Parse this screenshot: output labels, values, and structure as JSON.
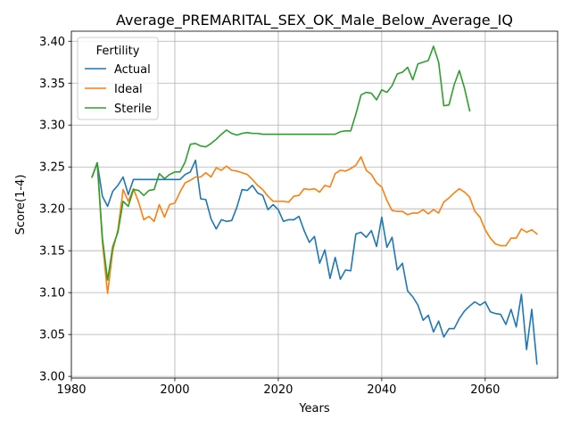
{
  "chart_data": {
    "type": "line",
    "title": "Average_PREMARITAL_SEX_OK_Male_Below_Average_IQ",
    "xlabel": "Years",
    "ylabel": "Score(1-4)",
    "xlim": [
      1980,
      2074
    ],
    "ylim": [
      2.998,
      3.412
    ],
    "x_ticks": [
      1980,
      2000,
      2020,
      2040,
      2060
    ],
    "y_ticks": [
      3.0,
      3.05,
      3.1,
      3.15,
      3.2,
      3.25,
      3.3,
      3.35,
      3.4
    ],
    "x_tick_labels": [
      "1980",
      "2000",
      "2020",
      "2040",
      "2060"
    ],
    "y_tick_labels": [
      "3.00",
      "3.05",
      "3.10",
      "3.15",
      "3.20",
      "3.25",
      "3.30",
      "3.35",
      "3.40"
    ],
    "grid": true,
    "legend": {
      "title": "Fertility",
      "position": "top-left"
    },
    "series": [
      {
        "name": "Actual",
        "color": "#1f77b4",
        "x": [
          1984,
          1985,
          1986,
          1987,
          1988,
          1989,
          1990,
          1991,
          1992,
          1993,
          1994,
          1995,
          1996,
          1997,
          1998,
          1999,
          2000,
          2001,
          2002,
          2003,
          2004,
          2005,
          2006,
          2007,
          2008,
          2009,
          2010,
          2011,
          2012,
          2013,
          2014,
          2015,
          2016,
          2017,
          2018,
          2019,
          2020,
          2021,
          2022,
          2023,
          2024,
          2025,
          2026,
          2027,
          2028,
          2029,
          2030,
          2031,
          2032,
          2033,
          2034,
          2035,
          2036,
          2037,
          2038,
          2039,
          2040,
          2041,
          2042,
          2043,
          2044,
          2045,
          2046,
          2047,
          2048,
          2049,
          2050,
          2051,
          2052,
          2053,
          2054,
          2055,
          2056,
          2057,
          2058,
          2059,
          2060,
          2061,
          2062,
          2063,
          2064,
          2065,
          2066,
          2067,
          2068,
          2069,
          2070
        ],
        "values": [
          3.238,
          3.255,
          3.215,
          3.203,
          3.221,
          3.228,
          3.238,
          3.217,
          3.235,
          3.235,
          3.235,
          3.235,
          3.235,
          3.235,
          3.235,
          3.235,
          3.235,
          3.235,
          3.241,
          3.244,
          3.258,
          3.212,
          3.211,
          3.188,
          3.176,
          3.187,
          3.185,
          3.186,
          3.202,
          3.223,
          3.222,
          3.228,
          3.219,
          3.216,
          3.199,
          3.205,
          3.199,
          3.185,
          3.187,
          3.187,
          3.191,
          3.174,
          3.16,
          3.167,
          3.135,
          3.151,
          3.117,
          3.142,
          3.116,
          3.127,
          3.126,
          3.17,
          3.172,
          3.166,
          3.174,
          3.155,
          3.19,
          3.154,
          3.166,
          3.127,
          3.135,
          3.102,
          3.095,
          3.085,
          3.067,
          3.073,
          3.053,
          3.066,
          3.047,
          3.057,
          3.057,
          3.069,
          3.078,
          3.084,
          3.089,
          3.085,
          3.089,
          3.077,
          3.075,
          3.074,
          3.062,
          3.08,
          3.059,
          3.098,
          3.032,
          3.08,
          3.015
        ]
      },
      {
        "name": "Ideal",
        "color": "#ff7f0e",
        "x": [
          1984,
          1985,
          1986,
          1987,
          1988,
          1989,
          1990,
          1991,
          1992,
          1993,
          1994,
          1995,
          1996,
          1997,
          1998,
          1999,
          2000,
          2001,
          2002,
          2003,
          2004,
          2005,
          2006,
          2007,
          2008,
          2009,
          2010,
          2011,
          2012,
          2013,
          2014,
          2015,
          2016,
          2017,
          2018,
          2019,
          2020,
          2021,
          2022,
          2023,
          2024,
          2025,
          2026,
          2027,
          2028,
          2029,
          2030,
          2031,
          2032,
          2033,
          2034,
          2035,
          2036,
          2037,
          2038,
          2039,
          2040,
          2041,
          2042,
          2043,
          2044,
          2045,
          2046,
          2047,
          2048,
          2049,
          2050,
          2051,
          2052,
          2053,
          2054,
          2055,
          2056,
          2057,
          2058,
          2059,
          2060,
          2061,
          2062,
          2063,
          2064,
          2065,
          2066,
          2067,
          2068,
          2069,
          2070
        ],
        "values": [
          3.238,
          3.255,
          3.16,
          3.099,
          3.15,
          3.175,
          3.223,
          3.209,
          3.224,
          3.208,
          3.187,
          3.191,
          3.185,
          3.205,
          3.19,
          3.205,
          3.207,
          3.22,
          3.231,
          3.234,
          3.238,
          3.238,
          3.243,
          3.238,
          3.249,
          3.246,
          3.251,
          3.246,
          3.245,
          3.243,
          3.241,
          3.235,
          3.228,
          3.223,
          3.215,
          3.209,
          3.209,
          3.209,
          3.208,
          3.215,
          3.216,
          3.224,
          3.223,
          3.224,
          3.22,
          3.228,
          3.226,
          3.242,
          3.246,
          3.245,
          3.248,
          3.252,
          3.262,
          3.246,
          3.241,
          3.231,
          3.226,
          3.21,
          3.198,
          3.197,
          3.197,
          3.193,
          3.195,
          3.195,
          3.199,
          3.194,
          3.199,
          3.195,
          3.208,
          3.213,
          3.219,
          3.224,
          3.22,
          3.214,
          3.197,
          3.19,
          3.175,
          3.165,
          3.158,
          3.156,
          3.156,
          3.165,
          3.165,
          3.176,
          3.172,
          3.175,
          3.17
        ]
      },
      {
        "name": "Sterile",
        "color": "#2ca02c",
        "x": [
          1984,
          1985,
          1986,
          1987,
          1988,
          1989,
          1990,
          1991,
          1992,
          1993,
          1994,
          1995,
          1996,
          1997,
          1998,
          1999,
          2000,
          2001,
          2002,
          2003,
          2004,
          2005,
          2006,
          2007,
          2008,
          2009,
          2010,
          2011,
          2012,
          2013,
          2014,
          2015,
          2016,
          2017,
          2018,
          2019,
          2020,
          2021,
          2022,
          2023,
          2024,
          2025,
          2026,
          2027,
          2028,
          2029,
          2030,
          2031,
          2032,
          2033,
          2034,
          2035,
          2036,
          2037,
          2038,
          2039,
          2040,
          2041,
          2042,
          2043,
          2044,
          2045,
          2046,
          2047,
          2048,
          2049,
          2050,
          2051,
          2052,
          2053,
          2054,
          2055,
          2056,
          2057
        ],
        "values": [
          3.238,
          3.255,
          3.165,
          3.115,
          3.155,
          3.172,
          3.209,
          3.203,
          3.223,
          3.222,
          3.216,
          3.222,
          3.223,
          3.242,
          3.236,
          3.241,
          3.244,
          3.244,
          3.256,
          3.277,
          3.278,
          3.275,
          3.274,
          3.278,
          3.283,
          3.289,
          3.294,
          3.29,
          3.288,
          3.29,
          3.291,
          3.29,
          3.29,
          3.289,
          3.289,
          3.289,
          3.289,
          3.289,
          3.289,
          3.289,
          3.289,
          3.289,
          3.289,
          3.289,
          3.289,
          3.289,
          3.289,
          3.289,
          3.292,
          3.293,
          3.293,
          3.313,
          3.336,
          3.339,
          3.338,
          3.33,
          3.342,
          3.339,
          3.347,
          3.361,
          3.363,
          3.369,
          3.354,
          3.373,
          3.375,
          3.377,
          3.394,
          3.375,
          3.323,
          3.324,
          3.348,
          3.365,
          3.344,
          3.317
        ]
      }
    ]
  }
}
